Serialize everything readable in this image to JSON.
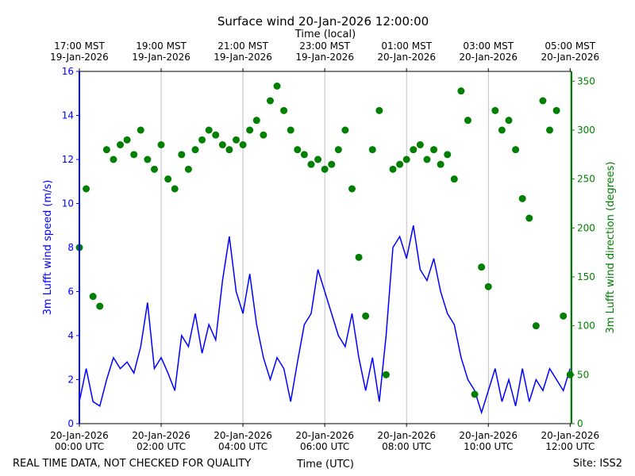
{
  "chart_data": {
    "type": "line_scatter",
    "title": "Surface wind 20-Jan-2026 12:00:00",
    "top_axis_label": "Time (local)",
    "x_label": "Time (UTC)",
    "y_label": "3m Lufft wind speed (m/s)",
    "y2_label": "3m Lufft wind direction (degrees)",
    "footer_left": "REAL TIME DATA, NOT CHECKED FOR QUALITY",
    "footer_right": "Site: ISS2",
    "grid": "x",
    "xlim": [
      "2026-01-20T00:00",
      "2026-01-20T12:02"
    ],
    "xticks": [
      {
        "value": "2026-01-20T00:00",
        "label": "20-Jan-2026\n00:00 UTC"
      },
      {
        "value": "2026-01-20T02:00",
        "label": "20-Jan-2026\n02:00 UTC"
      },
      {
        "value": "2026-01-20T04:00",
        "label": "20-Jan-2026\n04:00 UTC"
      },
      {
        "value": "2026-01-20T06:00",
        "label": "20-Jan-2026\n06:00 UTC"
      },
      {
        "value": "2026-01-20T08:00",
        "label": "20-Jan-2026\n08:00 UTC"
      },
      {
        "value": "2026-01-20T10:00",
        "label": "20-Jan-2026\n10:00 UTC"
      },
      {
        "value": "2026-01-20T12:00",
        "label": "20-Jan-2026\n12:00 UTC"
      }
    ],
    "x2ticks": [
      {
        "value": "2026-01-20T00:00",
        "label": "17:00 MST\n19-Jan-2026"
      },
      {
        "value": "2026-01-20T02:00",
        "label": "19:00 MST\n19-Jan-2026"
      },
      {
        "value": "2026-01-20T04:00",
        "label": "21:00 MST\n19-Jan-2026"
      },
      {
        "value": "2026-01-20T06:00",
        "label": "23:00 MST\n19-Jan-2026"
      },
      {
        "value": "2026-01-20T08:00",
        "label": "01:00 MST\n20-Jan-2026"
      },
      {
        "value": "2026-01-20T10:00",
        "label": "03:00 MST\n20-Jan-2026"
      },
      {
        "value": "2026-01-20T12:00",
        "label": "05:00 MST\n20-Jan-2026"
      }
    ],
    "ylim": [
      0,
      16
    ],
    "yticks": [
      0,
      2,
      4,
      6,
      8,
      10,
      12,
      14,
      16
    ],
    "y2lim": [
      0,
      360
    ],
    "y2ticks": [
      0,
      50,
      100,
      150,
      200,
      250,
      300,
      350
    ],
    "x": [
      "2026-01-20T00:00",
      "2026-01-20T00:10",
      "2026-01-20T00:20",
      "2026-01-20T00:30",
      "2026-01-20T00:40",
      "2026-01-20T00:50",
      "2026-01-20T01:00",
      "2026-01-20T01:10",
      "2026-01-20T01:20",
      "2026-01-20T01:30",
      "2026-01-20T01:40",
      "2026-01-20T01:50",
      "2026-01-20T02:00",
      "2026-01-20T02:10",
      "2026-01-20T02:20",
      "2026-01-20T02:30",
      "2026-01-20T02:40",
      "2026-01-20T02:50",
      "2026-01-20T03:00",
      "2026-01-20T03:10",
      "2026-01-20T03:20",
      "2026-01-20T03:30",
      "2026-01-20T03:40",
      "2026-01-20T03:50",
      "2026-01-20T04:00",
      "2026-01-20T04:10",
      "2026-01-20T04:20",
      "2026-01-20T04:30",
      "2026-01-20T04:40",
      "2026-01-20T04:50",
      "2026-01-20T05:00",
      "2026-01-20T05:10",
      "2026-01-20T05:20",
      "2026-01-20T05:30",
      "2026-01-20T05:40",
      "2026-01-20T05:50",
      "2026-01-20T06:00",
      "2026-01-20T06:10",
      "2026-01-20T06:20",
      "2026-01-20T06:30",
      "2026-01-20T06:40",
      "2026-01-20T06:50",
      "2026-01-20T07:00",
      "2026-01-20T07:10",
      "2026-01-20T07:20",
      "2026-01-20T07:30",
      "2026-01-20T07:40",
      "2026-01-20T07:50",
      "2026-01-20T08:00",
      "2026-01-20T08:10",
      "2026-01-20T08:20",
      "2026-01-20T08:30",
      "2026-01-20T08:40",
      "2026-01-20T08:50",
      "2026-01-20T09:00",
      "2026-01-20T09:10",
      "2026-01-20T09:20",
      "2026-01-20T09:30",
      "2026-01-20T09:40",
      "2026-01-20T09:50",
      "2026-01-20T10:00",
      "2026-01-20T10:10",
      "2026-01-20T10:20",
      "2026-01-20T10:30",
      "2026-01-20T10:40",
      "2026-01-20T10:50",
      "2026-01-20T11:00",
      "2026-01-20T11:10",
      "2026-01-20T11:20",
      "2026-01-20T11:30",
      "2026-01-20T11:40",
      "2026-01-20T11:50",
      "2026-01-20T12:00"
    ],
    "series": [
      {
        "name": "3m Lufft wind speed",
        "color": "#0000ff",
        "mark": "line",
        "axis": "y",
        "values": [
          1.0,
          2.5,
          1.0,
          0.8,
          2.0,
          3.0,
          2.5,
          2.8,
          2.3,
          3.5,
          5.5,
          2.5,
          3.0,
          2.3,
          1.5,
          4.0,
          3.5,
          5.0,
          3.2,
          4.5,
          3.8,
          6.5,
          8.5,
          6.0,
          5.0,
          6.8,
          4.5,
          3.0,
          2.0,
          3.0,
          2.5,
          1.0,
          2.8,
          4.5,
          5.0,
          7.0,
          6.0,
          5.0,
          4.0,
          3.5,
          5.0,
          3.0,
          1.5,
          3.0,
          1.0,
          4.0,
          8.0,
          8.5,
          7.5,
          9.0,
          7.0,
          6.5,
          7.5,
          6.0,
          5.0,
          4.5,
          3.0,
          2.0,
          1.5,
          0.5,
          1.5,
          2.5,
          1.0,
          2.0,
          0.8,
          2.5,
          1.0,
          2.0,
          1.5,
          2.5,
          2.0,
          1.5,
          2.5
        ]
      },
      {
        "name": "3m Lufft wind direction",
        "color": "#008000",
        "mark": "scatter",
        "axis": "y2",
        "values": [
          180,
          240,
          130,
          120,
          280,
          270,
          285,
          290,
          275,
          300,
          270,
          260,
          285,
          250,
          240,
          275,
          260,
          280,
          290,
          300,
          295,
          285,
          280,
          290,
          285,
          300,
          310,
          295,
          330,
          345,
          320,
          300,
          280,
          275,
          265,
          270,
          260,
          265,
          280,
          300,
          240,
          170,
          110,
          280,
          320,
          50,
          260,
          265,
          270,
          280,
          285,
          270,
          280,
          265,
          275,
          250,
          340,
          310,
          30,
          160,
          140,
          320,
          300,
          310,
          280,
          230,
          210,
          100,
          330,
          300,
          320,
          110,
          50
        ]
      }
    ]
  }
}
